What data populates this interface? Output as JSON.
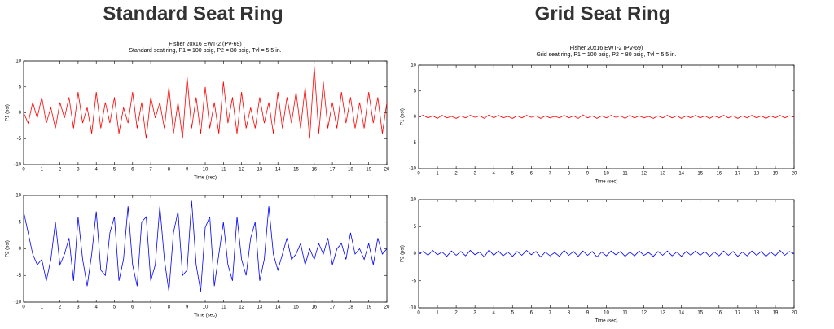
{
  "headings": [
    "Standard Seat Ring",
    "Grid Seat Ring"
  ],
  "chart_data": [
    {
      "type": "line",
      "title": "Fisher 20x16 EWT-2 (PV-69)",
      "subtitle": "Standard seat ring, P1 = 100 psig, P2 = 80 psig, Tvl = 5.5 in.",
      "x_label": "Time (sec)",
      "y_label": "P1 (psi)",
      "xlim": [
        0,
        20
      ],
      "xticks": [
        0,
        1,
        2,
        3,
        4,
        5,
        6,
        7,
        8,
        9,
        10,
        11,
        12,
        13,
        14,
        15,
        16,
        17,
        18,
        19,
        20
      ],
      "ylim": [
        -10,
        10
      ],
      "yticks": [
        -10,
        -5,
        0,
        5,
        10
      ],
      "x": [
        0,
        0.25,
        0.5,
        0.75,
        1,
        1.25,
        1.5,
        1.75,
        2,
        2.25,
        2.5,
        2.75,
        3,
        3.25,
        3.5,
        3.75,
        4,
        4.25,
        4.5,
        4.75,
        5,
        5.25,
        5.5,
        5.75,
        6,
        6.25,
        6.5,
        6.75,
        7,
        7.25,
        7.5,
        7.75,
        8,
        8.25,
        8.5,
        8.75,
        9,
        9.25,
        9.5,
        9.75,
        10,
        10.25,
        10.5,
        10.75,
        11,
        11.25,
        11.5,
        11.75,
        12,
        12.25,
        12.5,
        12.75,
        13,
        13.25,
        13.5,
        13.75,
        14,
        14.25,
        14.5,
        14.75,
        15,
        15.25,
        15.5,
        15.75,
        16,
        16.25,
        16.5,
        16.75,
        17,
        17.25,
        17.5,
        17.75,
        18,
        18.25,
        18.5,
        18.75,
        19,
        19.25,
        19.5,
        19.75,
        20
      ],
      "series": [
        {
          "name": "P1",
          "color": "#ff0000",
          "values": [
            0,
            -2,
            2,
            -1,
            3,
            -2,
            1,
            -3,
            2,
            -1,
            3,
            -3,
            4,
            -2,
            1,
            -4,
            4,
            -3,
            2,
            -2,
            3,
            -4,
            1,
            -2,
            4,
            -3,
            2,
            -5,
            3,
            -1,
            2,
            -3,
            5,
            -4,
            2,
            -5,
            7,
            -3,
            3,
            -4,
            5,
            -3,
            2,
            -4,
            6,
            -2,
            3,
            -4,
            4,
            -3,
            1,
            -3,
            3,
            -2,
            2,
            -4,
            4,
            -3,
            3,
            -2,
            4,
            -3,
            5,
            -5,
            9,
            -4,
            6,
            -3,
            2,
            -3,
            4,
            -2,
            3,
            -3,
            2,
            -3,
            4,
            -2,
            3,
            -4,
            2
          ]
        }
      ]
    },
    {
      "type": "line",
      "x_label": "Time (sec)",
      "y_label": "P2 (psi)",
      "xlim": [
        0,
        20
      ],
      "xticks": [
        0,
        1,
        2,
        3,
        4,
        5,
        6,
        7,
        8,
        9,
        10,
        11,
        12,
        13,
        14,
        15,
        16,
        17,
        18,
        19,
        20
      ],
      "ylim": [
        -10,
        10
      ],
      "yticks": [
        -10,
        -5,
        0,
        5,
        10
      ],
      "x": [
        0,
        0.25,
        0.5,
        0.75,
        1,
        1.25,
        1.5,
        1.75,
        2,
        2.25,
        2.5,
        2.75,
        3,
        3.25,
        3.5,
        3.75,
        4,
        4.25,
        4.5,
        4.75,
        5,
        5.25,
        5.5,
        5.75,
        6,
        6.25,
        6.5,
        6.75,
        7,
        7.25,
        7.5,
        7.75,
        8,
        8.25,
        8.5,
        8.75,
        9,
        9.25,
        9.5,
        9.75,
        10,
        10.25,
        10.5,
        10.75,
        11,
        11.25,
        11.5,
        11.75,
        12,
        12.25,
        12.5,
        12.75,
        13,
        13.25,
        13.5,
        13.75,
        14,
        14.25,
        14.5,
        14.75,
        15,
        15.25,
        15.5,
        15.75,
        16,
        16.25,
        16.5,
        16.75,
        17,
        17.25,
        17.5,
        17.75,
        18,
        18.25,
        18.5,
        18.75,
        19,
        19.25,
        19.5,
        19.75,
        20
      ],
      "series": [
        {
          "name": "P2",
          "color": "#0000ff",
          "values": [
            7,
            3,
            -1,
            -3,
            -2,
            -6,
            -2,
            5,
            -3,
            -1,
            2,
            -6,
            6,
            -2,
            -7,
            -1,
            7,
            -4,
            -5,
            3,
            6,
            -6,
            -2,
            8,
            -3,
            -7,
            5,
            6,
            -6,
            -3,
            8,
            -2,
            -8,
            3,
            7,
            -5,
            -4,
            9,
            -3,
            -8,
            4,
            6,
            -7,
            -1,
            5,
            -3,
            -6,
            6,
            -2,
            -5,
            2,
            5,
            -6,
            -2,
            8,
            -1,
            -4,
            -1,
            2,
            -2,
            -1,
            1,
            -3,
            0,
            -2,
            1,
            -1,
            2,
            -3,
            0,
            1,
            -2,
            3,
            -1,
            0,
            -2,
            1,
            -3,
            2,
            -1,
            0
          ]
        }
      ]
    },
    {
      "type": "line",
      "title": "Fisher 20x16 EWT-2 (PV-69)",
      "subtitle": "Grid seat ring, P1 = 100 psig, P2 = 80 psig, Tvl = 5.5 in.",
      "x_label": "Time (sec)",
      "y_label": "P1 (psi)",
      "xlim": [
        0,
        20
      ],
      "xticks": [
        0,
        1,
        2,
        3,
        4,
        5,
        6,
        7,
        8,
        9,
        10,
        11,
        12,
        13,
        14,
        15,
        16,
        17,
        18,
        19,
        20
      ],
      "ylim": [
        -10,
        10
      ],
      "yticks": [
        -10,
        -5,
        0,
        5,
        10
      ],
      "x": [
        0,
        0.25,
        0.5,
        0.75,
        1,
        1.25,
        1.5,
        1.75,
        2,
        2.25,
        2.5,
        2.75,
        3,
        3.25,
        3.5,
        3.75,
        4,
        4.25,
        4.5,
        4.75,
        5,
        5.25,
        5.5,
        5.75,
        6,
        6.25,
        6.5,
        6.75,
        7,
        7.25,
        7.5,
        7.75,
        8,
        8.25,
        8.5,
        8.75,
        9,
        9.25,
        9.5,
        9.75,
        10,
        10.25,
        10.5,
        10.75,
        11,
        11.25,
        11.5,
        11.75,
        12,
        12.25,
        12.5,
        12.75,
        13,
        13.25,
        13.5,
        13.75,
        14,
        14.25,
        14.5,
        14.75,
        15,
        15.25,
        15.5,
        15.75,
        16,
        16.25,
        16.5,
        16.75,
        17,
        17.25,
        17.5,
        17.75,
        18,
        18.25,
        18.5,
        18.75,
        19,
        19.25,
        19.5,
        19.75,
        20
      ],
      "series": [
        {
          "name": "P1",
          "color": "#ff0000",
          "values": [
            0,
            0.3,
            -0.2,
            0.2,
            -0.3,
            0.3,
            -0.2,
            0.1,
            -0.3,
            0.2,
            -0.2,
            0.3,
            -0.1,
            0.2,
            -0.3,
            0.4,
            -0.2,
            0.3,
            -0.2,
            0.1,
            -0.3,
            0.2,
            -0.2,
            0.3,
            -0.1,
            0.2,
            -0.3,
            0.2,
            -0.2,
            0.1,
            -0.2,
            0.3,
            -0.2,
            0.2,
            -0.3,
            0.4,
            -0.2,
            0.2,
            -0.3,
            0.2,
            -0.2,
            0.3,
            -0.1,
            0.2,
            -0.3,
            0.3,
            -0.2,
            0.2,
            -0.2,
            0.1,
            -0.3,
            0.2,
            -0.2,
            0.3,
            -0.2,
            0.2,
            -0.3,
            0.2,
            -0.2,
            0.3,
            -0.2,
            0.2,
            -0.3,
            0.2,
            -0.2,
            0.3,
            -0.2,
            0.2,
            -0.3,
            0.2,
            -0.2,
            0.3,
            -0.2,
            0.2,
            -0.3,
            0.2,
            -0.2,
            0.3,
            -0.2,
            0.2,
            0
          ]
        }
      ]
    },
    {
      "type": "line",
      "x_label": "Time (sec)",
      "y_label": "P2 (psi)",
      "xlim": [
        0,
        20
      ],
      "xticks": [
        0,
        1,
        2,
        3,
        4,
        5,
        6,
        7,
        8,
        9,
        10,
        11,
        12,
        13,
        14,
        15,
        16,
        17,
        18,
        19,
        20
      ],
      "ylim": [
        -10,
        10
      ],
      "yticks": [
        -10,
        -5,
        0,
        5,
        10
      ],
      "x": [
        0,
        0.25,
        0.5,
        0.75,
        1,
        1.25,
        1.5,
        1.75,
        2,
        2.25,
        2.5,
        2.75,
        3,
        3.25,
        3.5,
        3.75,
        4,
        4.25,
        4.5,
        4.75,
        5,
        5.25,
        5.5,
        5.75,
        6,
        6.25,
        6.5,
        6.75,
        7,
        7.25,
        7.5,
        7.75,
        8,
        8.25,
        8.5,
        8.75,
        9,
        9.25,
        9.5,
        9.75,
        10,
        10.25,
        10.5,
        10.75,
        11,
        11.25,
        11.5,
        11.75,
        12,
        12.25,
        12.5,
        12.75,
        13,
        13.25,
        13.5,
        13.75,
        14,
        14.25,
        14.5,
        14.75,
        15,
        15.25,
        15.5,
        15.75,
        16,
        16.25,
        16.5,
        16.75,
        17,
        17.25,
        17.5,
        17.75,
        18,
        18.25,
        18.5,
        18.75,
        19,
        19.25,
        19.5,
        19.75,
        20
      ],
      "series": [
        {
          "name": "P2",
          "color": "#0000ff",
          "values": [
            0,
            0.4,
            -0.3,
            0.6,
            -0.2,
            0.3,
            -0.5,
            0.5,
            -0.3,
            0.4,
            -0.4,
            0.6,
            -0.2,
            0.3,
            -0.6,
            0.7,
            -0.3,
            0.5,
            -0.4,
            0.3,
            -0.5,
            0.4,
            -0.3,
            0.6,
            -0.2,
            0.4,
            -0.6,
            0.3,
            -0.4,
            0.2,
            -0.5,
            0.6,
            -0.3,
            0.4,
            -0.5,
            0.5,
            -0.3,
            0.4,
            -0.6,
            0.3,
            -0.4,
            0.5,
            -0.2,
            0.4,
            -0.5,
            0.3,
            -0.4,
            0.5,
            -0.3,
            0.2,
            -0.5,
            0.4,
            -0.3,
            0.5,
            -0.4,
            0.3,
            -0.5,
            0.4,
            -0.3,
            0.5,
            -0.3,
            0.4,
            -0.5,
            0.3,
            -0.4,
            0.5,
            -0.3,
            0.4,
            -0.5,
            0.3,
            -0.4,
            0.5,
            -0.3,
            0.4,
            -0.5,
            0.3,
            -0.4,
            0.6,
            -0.3,
            0.4,
            0
          ]
        }
      ]
    }
  ]
}
